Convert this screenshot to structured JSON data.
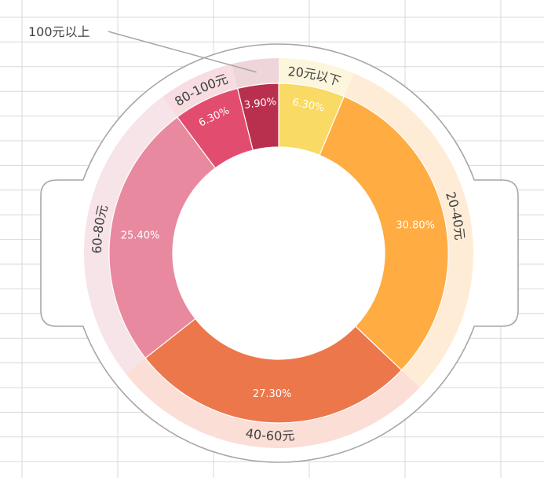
{
  "chart_data": {
    "type": "pie",
    "categories": [
      "20元以下",
      "20-40元",
      "40-60元",
      "60-80元",
      "80-100元",
      "100元以上"
    ],
    "values": [
      6.3,
      30.8,
      27.3,
      25.4,
      6.3,
      3.9
    ],
    "value_labels": [
      "6.30%",
      "30.80%",
      "27.30%",
      "25.40%",
      "6.30%",
      "3.90%"
    ],
    "callout_label": "100元以上",
    "colors": {
      "inner": [
        "#F8DA64",
        "#FFAC43",
        "#EC774B",
        "#E8899F",
        "#E24D6F",
        "#B8304E"
      ],
      "outer": [
        "#FBF6DC",
        "#FFECD6",
        "#FBDED6",
        "#F7E4E8",
        "#F7DDE2",
        "#EDD5D9"
      ]
    },
    "grid": true
  }
}
